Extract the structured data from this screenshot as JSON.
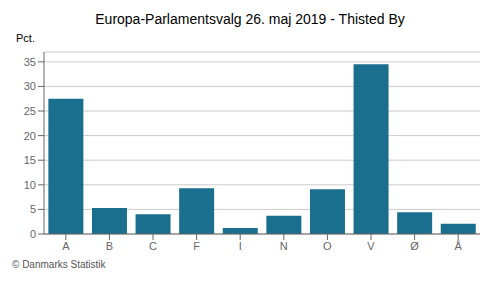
{
  "chart_data": {
    "type": "bar",
    "title": "Europa-Parlamentsvalg 26. maj 2019 - Thisted By",
    "categories": [
      "A",
      "B",
      "C",
      "F",
      "I",
      "N",
      "O",
      "V",
      "Ø",
      "Å"
    ],
    "values": [
      27.5,
      5.3,
      4.0,
      9.3,
      1.2,
      3.7,
      9.1,
      34.5,
      4.4,
      2.1
    ],
    "color": "#1a6e8e",
    "ylabel": "Pct.",
    "ylim": [
      0,
      37
    ],
    "yticks": [
      0,
      5,
      10,
      15,
      20,
      25,
      30,
      35
    ],
    "grid": true,
    "annotations": [
      "© Danmarks Statistik"
    ]
  }
}
